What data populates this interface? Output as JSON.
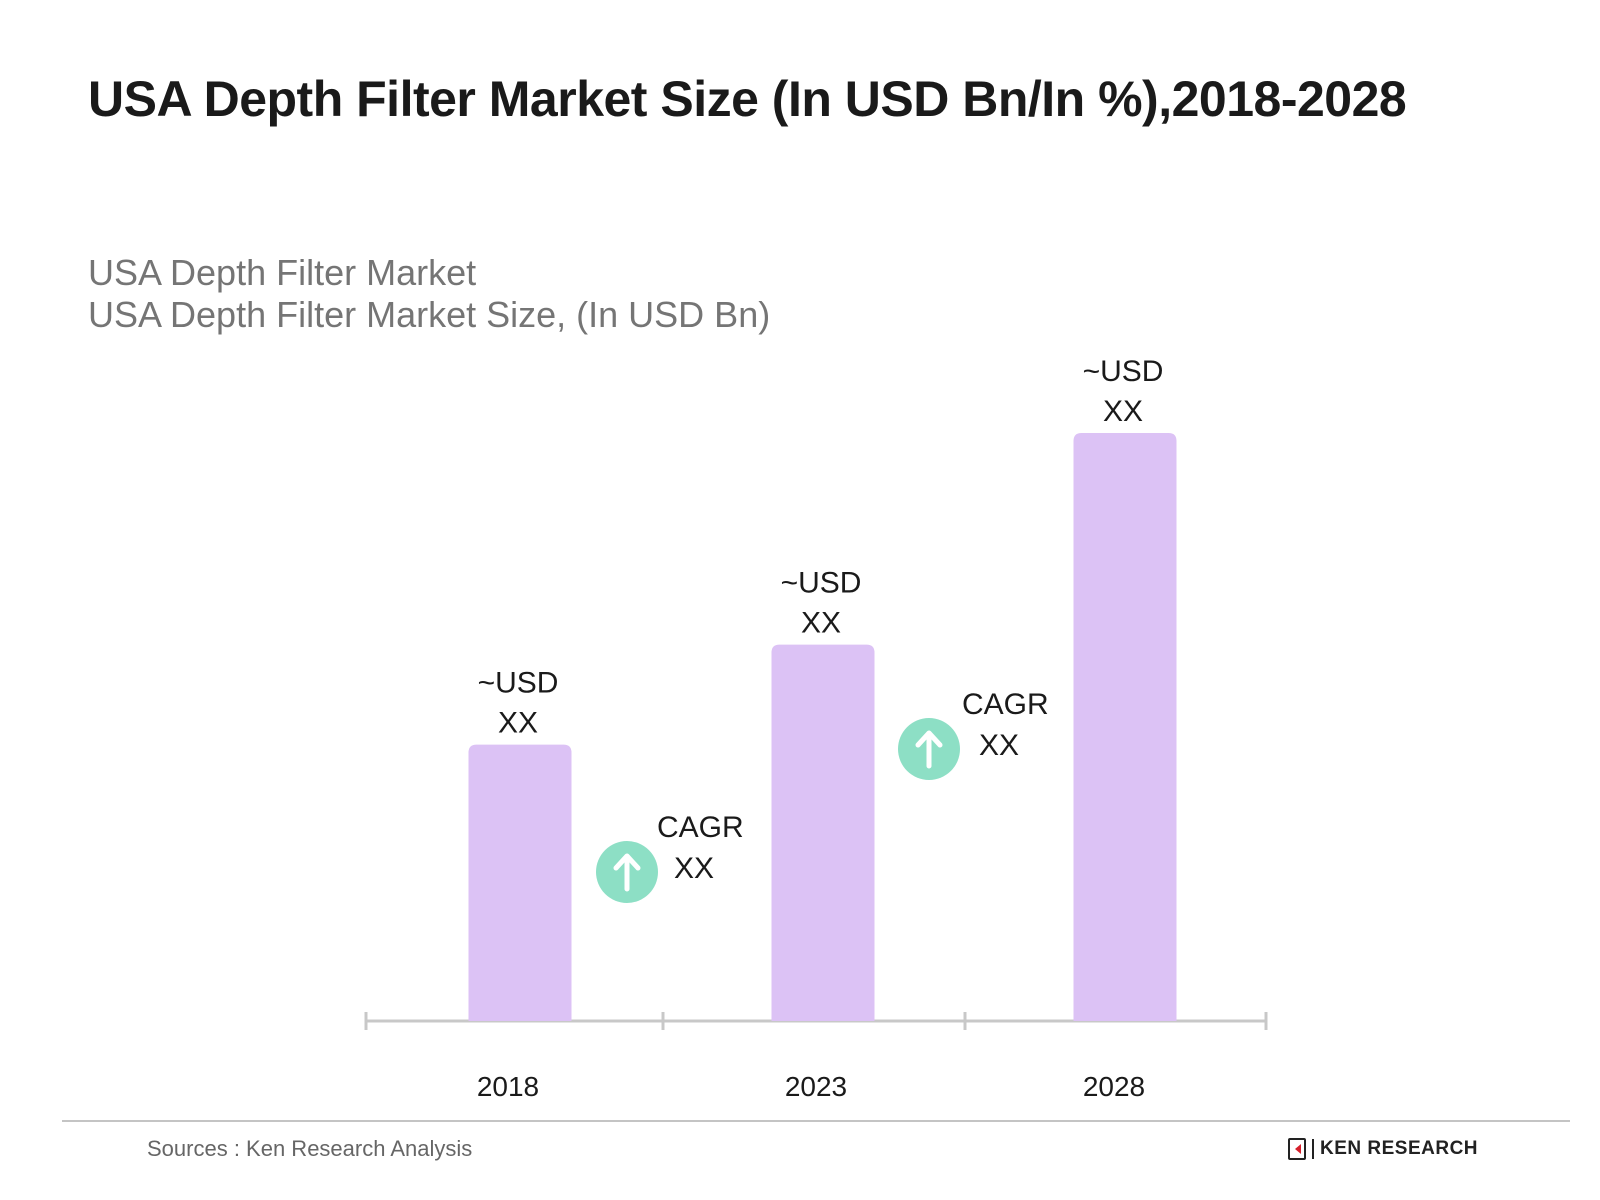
{
  "chart_data": {
    "type": "bar",
    "title": "USA Depth Filter Market Size (In USD Bn/In %),2018-2028",
    "subtitle_lines": [
      "USA Depth Filter Market",
      "USA Depth Filter Market Size, (In USD Bn)"
    ],
    "categories": [
      "2018",
      "2023",
      "2028"
    ],
    "relative_values": [
      0.47,
      0.64,
      1.0
    ],
    "value_labels": [
      [
        "~USD",
        "XX"
      ],
      [
        "~USD",
        "XX"
      ],
      [
        "~USD",
        "XX"
      ]
    ],
    "cagr_annotations": [
      {
        "between": [
          "2018",
          "2023"
        ],
        "label": "CAGR",
        "value": "XX"
      },
      {
        "between": [
          "2023",
          "2028"
        ],
        "label": "CAGR",
        "value": "XX"
      }
    ],
    "xlabel": "",
    "ylabel": "",
    "grid": false,
    "legend": "none",
    "colors": {
      "bar": "#dcc2f5",
      "cagr_circle": "#8ddfc5",
      "axis": "#c8c8c8"
    }
  },
  "footer": {
    "source": "Sources : Ken Research Analysis",
    "logo_text": "KEN RESEARCH"
  }
}
